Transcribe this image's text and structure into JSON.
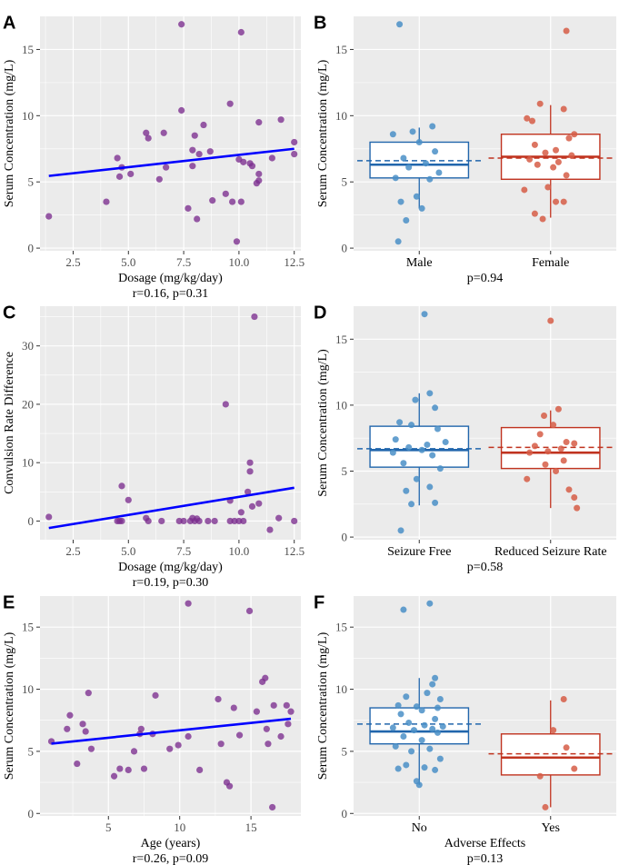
{
  "colors": {
    "panel_bg": "#ebebeb",
    "grid": "#ffffff",
    "scatter_point": "#7b2d8e",
    "regression_line": "#0000ff",
    "group1": "#2166ac",
    "group1_point": "#4a8fc7",
    "group2": "#c0331f",
    "group2_point": "#d65d47"
  },
  "chart_data": [
    {
      "panel": "A",
      "type": "scatter",
      "xlabel": "Dosage (mg/kg/day)",
      "ylabel": "Serum Concentration (mg/L)",
      "stat": "r=0.16, p=0.31",
      "xlim": [
        1,
        12.8
      ],
      "ylim": [
        -0.2,
        17.5
      ],
      "xticks": [
        2.5,
        5.0,
        7.5,
        10.0,
        12.5
      ],
      "xtick_labels": [
        "2.5",
        "5.0",
        "7.5",
        "10.0",
        "12.5"
      ],
      "yticks": [
        0,
        5,
        10,
        15
      ],
      "ytick_labels": [
        "0",
        "5",
        "10",
        "15"
      ],
      "points": [
        [
          1.4,
          2.4
        ],
        [
          4.0,
          3.5
        ],
        [
          4.5,
          6.8
        ],
        [
          4.6,
          5.4
        ],
        [
          4.7,
          6.1
        ],
        [
          5.1,
          5.6
        ],
        [
          5.8,
          8.7
        ],
        [
          5.9,
          8.3
        ],
        [
          6.4,
          5.2
        ],
        [
          6.6,
          8.7
        ],
        [
          6.7,
          6.1
        ],
        [
          7.4,
          10.4
        ],
        [
          7.4,
          16.9
        ],
        [
          7.7,
          3.0
        ],
        [
          7.9,
          7.4
        ],
        [
          7.9,
          6.2
        ],
        [
          8.0,
          8.5
        ],
        [
          8.1,
          2.2
        ],
        [
          8.2,
          7.1
        ],
        [
          8.4,
          9.3
        ],
        [
          8.7,
          7.3
        ],
        [
          8.8,
          3.6
        ],
        [
          9.4,
          4.1
        ],
        [
          9.6,
          10.9
        ],
        [
          9.7,
          3.5
        ],
        [
          9.9,
          0.5
        ],
        [
          10.0,
          6.7
        ],
        [
          10.1,
          3.5
        ],
        [
          10.1,
          16.3
        ],
        [
          10.2,
          6.5
        ],
        [
          10.5,
          6.4
        ],
        [
          10.6,
          6.2
        ],
        [
          10.8,
          4.9
        ],
        [
          10.9,
          5.6
        ],
        [
          10.9,
          5.1
        ],
        [
          10.9,
          9.5
        ],
        [
          11.5,
          6.8
        ],
        [
          11.9,
          9.7
        ],
        [
          12.5,
          8.0
        ],
        [
          12.5,
          7.1
        ]
      ],
      "fit": [
        [
          1.4,
          5.45
        ],
        [
          12.5,
          7.5
        ]
      ]
    },
    {
      "panel": "B",
      "type": "box",
      "xlabel": "",
      "ylabel": "Serum Concentration (mg/L)",
      "stat": "p=0.94",
      "ylim": [
        -0.2,
        17.5
      ],
      "yticks": [
        0,
        5,
        10,
        15
      ],
      "ytick_labels": [
        "0",
        "5",
        "10",
        "15"
      ],
      "groups": [
        {
          "name": "Male",
          "q1": 5.3,
          "median": 6.3,
          "q3": 8.0,
          "whisker_low": 3.0,
          "whisker_high": 9.1,
          "mean": 6.6,
          "points": [
            [
              -0.15,
              16.9
            ],
            [
              0.1,
              9.2
            ],
            [
              -0.05,
              8.8
            ],
            [
              -0.2,
              8.6
            ],
            [
              0.0,
              8.0
            ],
            [
              0.12,
              7.3
            ],
            [
              -0.12,
              6.8
            ],
            [
              0.05,
              6.4
            ],
            [
              -0.08,
              6.1
            ],
            [
              0.15,
              5.7
            ],
            [
              -0.18,
              5.3
            ],
            [
              0.08,
              5.2
            ],
            [
              -0.02,
              3.9
            ],
            [
              -0.14,
              3.5
            ],
            [
              0.02,
              3.0
            ],
            [
              -0.1,
              2.1
            ],
            [
              -0.16,
              0.5
            ]
          ]
        },
        {
          "name": "Female",
          "q1": 5.2,
          "median": 6.9,
          "q3": 8.6,
          "whisker_low": 2.3,
          "whisker_high": 10.8,
          "mean": 6.8,
          "points": [
            [
              0.12,
              16.4
            ],
            [
              -0.08,
              10.9
            ],
            [
              0.1,
              10.5
            ],
            [
              -0.18,
              9.8
            ],
            [
              -0.14,
              9.6
            ],
            [
              0.18,
              8.6
            ],
            [
              0.14,
              8.3
            ],
            [
              -0.12,
              7.8
            ],
            [
              0.04,
              7.4
            ],
            [
              -0.04,
              7.2
            ],
            [
              0.16,
              7.0
            ],
            [
              -0.16,
              6.7
            ],
            [
              0.06,
              6.5
            ],
            [
              -0.1,
              6.3
            ],
            [
              0.02,
              6.1
            ],
            [
              0.12,
              5.5
            ],
            [
              -0.02,
              4.6
            ],
            [
              -0.2,
              4.4
            ],
            [
              0.1,
              3.5
            ],
            [
              0.04,
              3.5
            ],
            [
              -0.12,
              2.6
            ],
            [
              -0.06,
              2.2
            ]
          ]
        }
      ]
    },
    {
      "panel": "C",
      "type": "scatter",
      "xlabel": "Dosage (mg/kg/day)",
      "ylabel": "Convulsion Rate Difference",
      "stat": "r=0.19, p=0.30",
      "xlim": [
        1,
        12.8
      ],
      "ylim": [
        -3.2,
        36.8
      ],
      "xticks": [
        2.5,
        5.0,
        7.5,
        10.0,
        12.5
      ],
      "xtick_labels": [
        "2.5",
        "5.0",
        "7.5",
        "10.0",
        "12.5"
      ],
      "yticks": [
        0,
        10,
        20,
        30
      ],
      "ytick_labels": [
        "0",
        "10",
        "20",
        "30"
      ],
      "points": [
        [
          1.4,
          0.7
        ],
        [
          4.5,
          0
        ],
        [
          4.6,
          0
        ],
        [
          4.7,
          6.0
        ],
        [
          4.7,
          0
        ],
        [
          5.0,
          3.6
        ],
        [
          5.8,
          0.5
        ],
        [
          5.9,
          0
        ],
        [
          6.5,
          0
        ],
        [
          7.3,
          0
        ],
        [
          7.5,
          0
        ],
        [
          7.8,
          0
        ],
        [
          7.9,
          0.5
        ],
        [
          8.0,
          0
        ],
        [
          8.1,
          0.4
        ],
        [
          8.2,
          0
        ],
        [
          8.6,
          0
        ],
        [
          8.9,
          0
        ],
        [
          9.4,
          20.0
        ],
        [
          9.6,
          0
        ],
        [
          9.6,
          3.5
        ],
        [
          9.8,
          0
        ],
        [
          10.0,
          0
        ],
        [
          10.1,
          1.5
        ],
        [
          10.2,
          0
        ],
        [
          10.4,
          5.0
        ],
        [
          10.5,
          10.0
        ],
        [
          10.5,
          8.5
        ],
        [
          10.6,
          2.5
        ],
        [
          10.7,
          35.0
        ],
        [
          10.9,
          3.0
        ],
        [
          11.4,
          -1.5
        ],
        [
          11.8,
          0.5
        ],
        [
          12.5,
          0
        ]
      ],
      "fit": [
        [
          1.4,
          -1.2
        ],
        [
          12.5,
          5.7
        ]
      ]
    },
    {
      "panel": "D",
      "type": "box",
      "xlabel": "",
      "ylabel": "Serum Concentration (mg/L)",
      "stat": "p=0.58",
      "ylim": [
        -0.2,
        17.5
      ],
      "yticks": [
        0,
        5,
        10,
        15
      ],
      "ytick_labels": [
        "0",
        "5",
        "10",
        "15"
      ],
      "groups": [
        {
          "name": "Seizure Free",
          "q1": 5.3,
          "median": 6.6,
          "q3": 8.4,
          "whisker_low": 2.4,
          "whisker_high": 10.9,
          "mean": 6.7,
          "points": [
            [
              0.04,
              16.9
            ],
            [
              0.08,
              10.9
            ],
            [
              -0.03,
              10.4
            ],
            [
              0.12,
              9.8
            ],
            [
              -0.15,
              8.7
            ],
            [
              -0.06,
              8.5
            ],
            [
              0.14,
              8.2
            ],
            [
              -0.18,
              7.4
            ],
            [
              0.2,
              7.2
            ],
            [
              0.06,
              7.0
            ],
            [
              -0.08,
              6.8
            ],
            [
              0.02,
              6.6
            ],
            [
              -0.2,
              6.4
            ],
            [
              0.1,
              6.2
            ],
            [
              -0.12,
              5.6
            ],
            [
              0.16,
              5.2
            ],
            [
              -0.02,
              4.4
            ],
            [
              0.08,
              3.8
            ],
            [
              -0.1,
              3.5
            ],
            [
              0.12,
              2.6
            ],
            [
              -0.06,
              2.5
            ],
            [
              -0.14,
              0.5
            ]
          ]
        },
        {
          "name": "Reduced Seizure Rate",
          "q1": 5.2,
          "median": 6.4,
          "q3": 8.3,
          "whisker_low": 2.2,
          "whisker_high": 9.6,
          "mean": 6.8,
          "points": [
            [
              0.0,
              16.4
            ],
            [
              0.06,
              9.7
            ],
            [
              -0.05,
              9.2
            ],
            [
              0.02,
              8.5
            ],
            [
              -0.08,
              7.8
            ],
            [
              0.12,
              7.2
            ],
            [
              0.18,
              7.1
            ],
            [
              -0.12,
              6.9
            ],
            [
              0.08,
              6.7
            ],
            [
              -0.02,
              6.5
            ],
            [
              -0.16,
              6.4
            ],
            [
              0.1,
              5.8
            ],
            [
              -0.04,
              5.5
            ],
            [
              0.04,
              5.0
            ],
            [
              -0.18,
              4.4
            ],
            [
              0.14,
              3.6
            ],
            [
              0.18,
              3.0
            ],
            [
              0.2,
              2.2
            ]
          ]
        }
      ]
    },
    {
      "panel": "E",
      "type": "scatter",
      "xlabel": "Age (years)",
      "ylabel": "Serum Concentration (mg/L)",
      "stat": "r=0.26, p=0.09",
      "xlim": [
        0.2,
        18.5
      ],
      "ylim": [
        -0.2,
        17.5
      ],
      "xticks": [
        5,
        10,
        15
      ],
      "xtick_labels": [
        "5",
        "10",
        "15"
      ],
      "yticks": [
        0,
        5,
        10,
        15
      ],
      "ytick_labels": [
        "0",
        "5",
        "10",
        "15"
      ],
      "points": [
        [
          1.0,
          5.8
        ],
        [
          2.1,
          6.8
        ],
        [
          2.3,
          7.9
        ],
        [
          2.8,
          4.0
        ],
        [
          3.2,
          7.2
        ],
        [
          3.4,
          6.6
        ],
        [
          3.6,
          9.7
        ],
        [
          3.8,
          5.2
        ],
        [
          5.4,
          3.0
        ],
        [
          5.8,
          3.6
        ],
        [
          6.4,
          3.5
        ],
        [
          6.8,
          5.0
        ],
        [
          7.2,
          6.4
        ],
        [
          7.3,
          6.8
        ],
        [
          7.5,
          3.6
        ],
        [
          8.1,
          6.4
        ],
        [
          8.3,
          9.5
        ],
        [
          9.3,
          5.2
        ],
        [
          9.9,
          5.5
        ],
        [
          10.6,
          6.2
        ],
        [
          10.6,
          16.9
        ],
        [
          11.4,
          3.5
        ],
        [
          12.7,
          9.2
        ],
        [
          12.9,
          5.6
        ],
        [
          13.3,
          2.5
        ],
        [
          13.5,
          2.2
        ],
        [
          13.8,
          8.5
        ],
        [
          14.2,
          6.3
        ],
        [
          14.9,
          16.3
        ],
        [
          15.4,
          8.2
        ],
        [
          15.8,
          10.6
        ],
        [
          16.0,
          10.9
        ],
        [
          16.1,
          6.8
        ],
        [
          16.2,
          5.6
        ],
        [
          16.5,
          0.5
        ],
        [
          16.6,
          8.7
        ],
        [
          17.1,
          6.2
        ],
        [
          17.5,
          8.7
        ],
        [
          17.8,
          8.2
        ],
        [
          17.6,
          7.2
        ]
      ],
      "fit": [
        [
          1.0,
          5.62
        ],
        [
          17.8,
          7.62
        ]
      ]
    },
    {
      "panel": "F",
      "type": "box",
      "xlabel": "Adverse Effects",
      "ylabel": "Serum Concentration (mg/L)",
      "stat": "p=0.13",
      "ylim": [
        -0.2,
        17.5
      ],
      "yticks": [
        0,
        5,
        10,
        15
      ],
      "ytick_labels": [
        "0",
        "5",
        "10",
        "15"
      ],
      "groups": [
        {
          "name": "No",
          "q1": 5.6,
          "median": 6.6,
          "q3": 8.5,
          "whisker_low": 2.3,
          "whisker_high": 10.9,
          "mean": 7.2,
          "points": [
            [
              -0.12,
              16.4
            ],
            [
              0.08,
              16.9
            ],
            [
              0.12,
              10.9
            ],
            [
              0.1,
              10.4
            ],
            [
              0.06,
              9.7
            ],
            [
              -0.1,
              9.4
            ],
            [
              0.16,
              9.2
            ],
            [
              -0.16,
              8.7
            ],
            [
              -0.02,
              8.6
            ],
            [
              0.14,
              8.5
            ],
            [
              0.02,
              8.3
            ],
            [
              -0.14,
              8.0
            ],
            [
              0.12,
              7.6
            ],
            [
              -0.08,
              7.3
            ],
            [
              0.04,
              7.1
            ],
            [
              0.18,
              7.0
            ],
            [
              -0.2,
              6.9
            ],
            [
              0.1,
              6.8
            ],
            [
              -0.04,
              6.7
            ],
            [
              0.14,
              6.5
            ],
            [
              -0.12,
              6.2
            ],
            [
              0.02,
              5.9
            ],
            [
              -0.18,
              5.4
            ],
            [
              0.08,
              5.2
            ],
            [
              -0.06,
              5.0
            ],
            [
              0.16,
              4.4
            ],
            [
              -0.1,
              3.9
            ],
            [
              0.04,
              3.7
            ],
            [
              -0.16,
              3.6
            ],
            [
              0.12,
              3.5
            ],
            [
              -0.02,
              2.6
            ],
            [
              0.0,
              2.3
            ]
          ]
        },
        {
          "name": "Yes",
          "q1": 3.1,
          "median": 4.5,
          "q3": 6.4,
          "whisker_low": 0.5,
          "whisker_high": 9.1,
          "mean": 4.8,
          "points": [
            [
              0.1,
              9.2
            ],
            [
              0.02,
              6.7
            ],
            [
              0.12,
              5.3
            ],
            [
              0.18,
              3.6
            ],
            [
              -0.08,
              3.0
            ],
            [
              -0.04,
              0.5
            ]
          ]
        }
      ]
    }
  ]
}
